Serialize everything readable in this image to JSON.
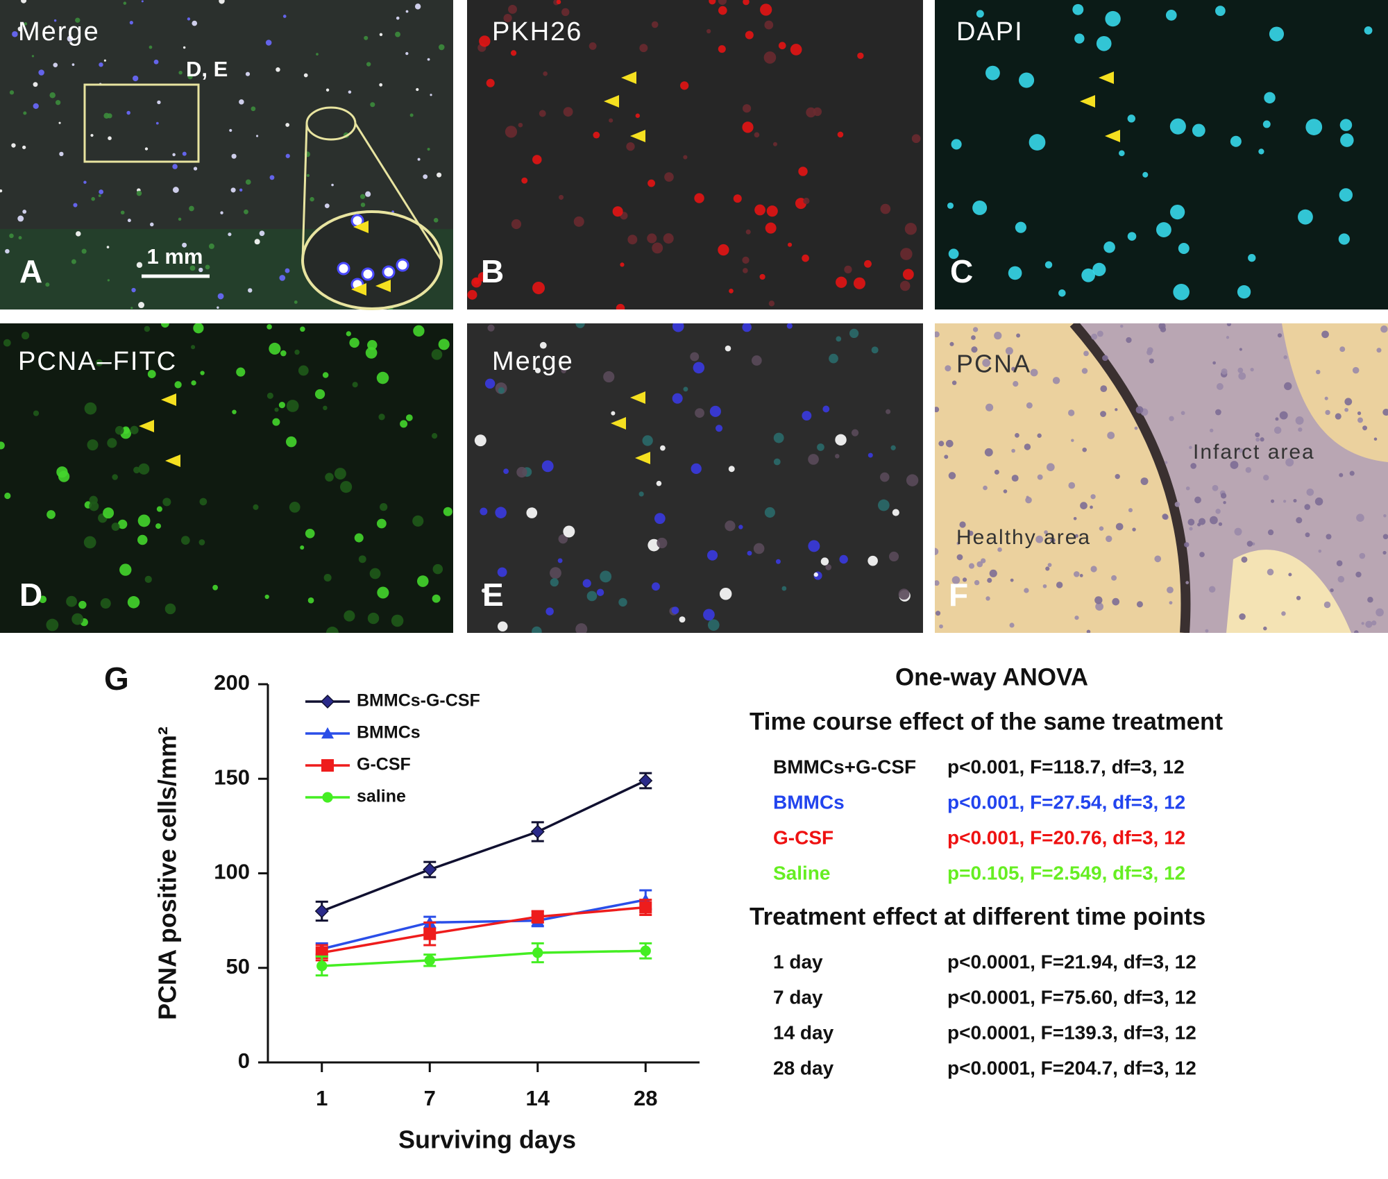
{
  "panels": [
    {
      "letter": "A",
      "label": "Merge",
      "annotations": [
        "D, E",
        "1 mm"
      ]
    },
    {
      "letter": "B",
      "label": "PKH26"
    },
    {
      "letter": "C",
      "label": "DAPI"
    },
    {
      "letter": "D",
      "label": "PCNA–FITC"
    },
    {
      "letter": "E",
      "label": "Merge"
    },
    {
      "letter": "F",
      "label": "PCNA",
      "annotations": [
        "Infarct area",
        "Healthy area"
      ]
    }
  ],
  "chart_data": {
    "type": "line",
    "panel_label": "G",
    "x_label": "Surviving days",
    "y_label": "PCNA positive cells/mm²",
    "categories": [
      "1",
      "7",
      "14",
      "28"
    ],
    "ylim": [
      0,
      200
    ],
    "yticks": [
      0,
      50,
      100,
      150,
      200
    ],
    "series": [
      {
        "name": "BMMCs-G-CSF",
        "color": "#101030",
        "marker": "diamond",
        "values": [
          80,
          102,
          122,
          149
        ],
        "errors": [
          5,
          4,
          5,
          4
        ]
      },
      {
        "name": "BMMCs",
        "color": "#2a4ee8",
        "marker": "triangle",
        "values": [
          60,
          74,
          75,
          86
        ],
        "errors": [
          3,
          3,
          3,
          5
        ]
      },
      {
        "name": "G-CSF",
        "color": "#ee1c1c",
        "marker": "square",
        "values": [
          58,
          68,
          77,
          82
        ],
        "errors": [
          4,
          6,
          3,
          4
        ]
      },
      {
        "name": "saline",
        "color": "#44ee22",
        "marker": "circle",
        "values": [
          51,
          54,
          58,
          59
        ],
        "errors": [
          5,
          3,
          5,
          4
        ]
      }
    ]
  },
  "anova": {
    "title": "One-way ANOVA",
    "sections": [
      {
        "heading": "Time course effect of the same treatment",
        "rows": [
          {
            "label": "BMMCs+G-CSF",
            "stats": "p<0.001, F=118.7, df=3, 12",
            "color": "#111111"
          },
          {
            "label": "BMMCs",
            "stats": "p<0.001, F=27.54, df=3, 12",
            "color": "#2244ee"
          },
          {
            "label": "G-CSF",
            "stats": "p<0.001, F=20.76, df=3, 12",
            "color": "#ee1111"
          },
          {
            "label": "Saline",
            "stats": "p=0.105, F=2.549, df=3, 12",
            "color": "#66ee22"
          }
        ]
      },
      {
        "heading": "Treatment effect at different time points",
        "rows": [
          {
            "label": "1 day",
            "stats": "p<0.0001, F=21.94, df=3, 12",
            "color": "#111111"
          },
          {
            "label": "7 day",
            "stats": "p<0.0001, F=75.60, df=3, 12",
            "color": "#111111"
          },
          {
            "label": "14 day",
            "stats": "p<0.0001, F=139.3, df=3, 12",
            "color": "#111111"
          },
          {
            "label": "28 day",
            "stats": "p<0.0001, F=204.7, df=3, 12",
            "color": "#111111"
          }
        ]
      }
    ]
  }
}
